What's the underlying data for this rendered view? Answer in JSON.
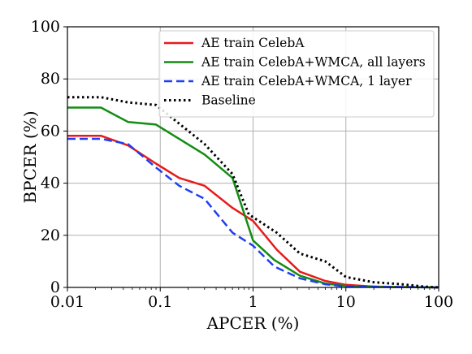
{
  "chart_data": {
    "type": "line",
    "title": "",
    "xlabel": "APCER (%)",
    "ylabel": "BPCER (%)",
    "x_scale": "log",
    "xlim": [
      0.01,
      100
    ],
    "ylim": [
      0,
      100
    ],
    "grid": true,
    "legend_position": "top-right",
    "x_ticks": [
      0.01,
      0.1,
      1,
      10,
      100
    ],
    "x_tick_labels": [
      "0.01",
      "0.1",
      "1",
      "10",
      "100"
    ],
    "y_ticks": [
      0,
      20,
      40,
      60,
      80,
      100
    ],
    "y_tick_labels": [
      "0",
      "20",
      "40",
      "60",
      "80",
      "100"
    ],
    "series": [
      {
        "name": "AE train CelebA",
        "color": "#e8191b",
        "style": "solid",
        "points": [
          [
            0.01,
            58.2
          ],
          [
            0.023,
            58.2
          ],
          [
            0.045,
            54.5
          ],
          [
            0.09,
            47.5
          ],
          [
            0.16,
            42.0
          ],
          [
            0.3,
            39.0
          ],
          [
            0.6,
            30.5
          ],
          [
            1.0,
            25.5
          ],
          [
            1.8,
            14.5
          ],
          [
            3.2,
            6.0
          ],
          [
            6.0,
            2.5
          ],
          [
            10,
            1.0
          ],
          [
            20,
            0.3
          ],
          [
            100,
            0
          ]
        ]
      },
      {
        "name": "AE train CelebA+WMCA, all layers",
        "color": "#138c13",
        "style": "solid",
        "points": [
          [
            0.01,
            69.0
          ],
          [
            0.023,
            69.0
          ],
          [
            0.045,
            63.5
          ],
          [
            0.09,
            62.5
          ],
          [
            0.3,
            51.0
          ],
          [
            0.6,
            42.0
          ],
          [
            1.0,
            18.0
          ],
          [
            1.7,
            10.5
          ],
          [
            3.2,
            4.5
          ],
          [
            6.0,
            1.5
          ],
          [
            10,
            0.6
          ],
          [
            20,
            0.2
          ],
          [
            100,
            0
          ]
        ]
      },
      {
        "name": "AE train CelebA+WMCA, 1 layer",
        "color": "#1f3ff0",
        "style": "dashed",
        "points": [
          [
            0.01,
            57.0
          ],
          [
            0.023,
            57.0
          ],
          [
            0.045,
            55.0
          ],
          [
            0.09,
            46.0
          ],
          [
            0.16,
            39.0
          ],
          [
            0.3,
            34.0
          ],
          [
            0.6,
            21.0
          ],
          [
            1.0,
            16.0
          ],
          [
            1.7,
            8.0
          ],
          [
            3.2,
            3.5
          ],
          [
            6.0,
            1.2
          ],
          [
            10,
            0.4
          ],
          [
            100,
            0
          ]
        ]
      },
      {
        "name": "Baseline",
        "color": "#000000",
        "style": "dotted",
        "points": [
          [
            0.01,
            73.0
          ],
          [
            0.023,
            73.0
          ],
          [
            0.045,
            71.0
          ],
          [
            0.09,
            70.0
          ],
          [
            0.3,
            55.0
          ],
          [
            0.6,
            43.5
          ],
          [
            0.9,
            28.0
          ],
          [
            1.8,
            21.0
          ],
          [
            3.2,
            13.0
          ],
          [
            6.0,
            10.0
          ],
          [
            10,
            4.0
          ],
          [
            20,
            2.0
          ],
          [
            40,
            1.2
          ],
          [
            70,
            0.3
          ],
          [
            100,
            0
          ]
        ]
      }
    ]
  }
}
